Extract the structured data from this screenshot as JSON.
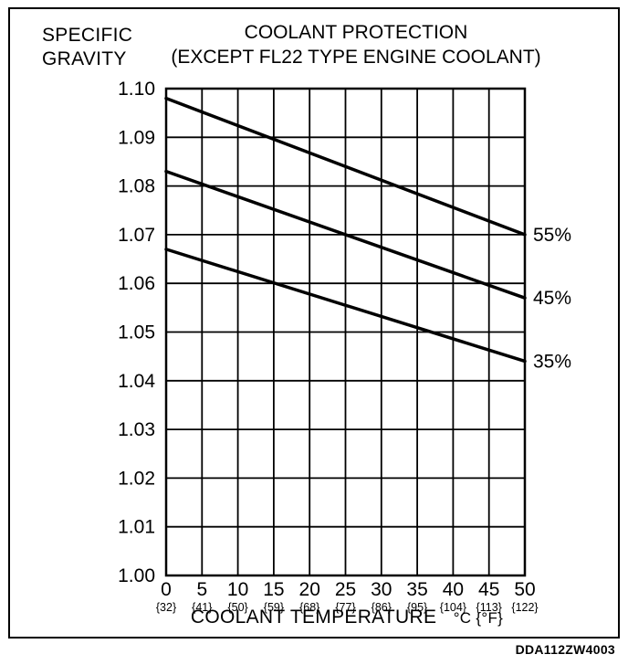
{
  "footer": {
    "figure_code": "DDA112ZW4003"
  },
  "chart_data": {
    "type": "line",
    "title": "COOLANT PROTECTION (EXCEPT FL22 TYPE ENGINE COOLANT)",
    "title_line1": "COOLANT PROTECTION",
    "title_line2": "(EXCEPT FL22 TYPE ENGINE COOLANT)",
    "ylabel": "SPECIFIC GRAVITY",
    "ylabel_line1": "SPECIFIC",
    "ylabel_line2": "GRAVITY",
    "xlabel": "COOLANT TEMPERATURE",
    "xlabel_unit": "°C {°F}",
    "xlim": [
      0,
      50
    ],
    "ylim": [
      1.0,
      1.1
    ],
    "grid": true,
    "x_ticks_c": [
      0,
      5,
      10,
      15,
      20,
      25,
      30,
      35,
      40,
      45,
      50
    ],
    "x_ticks_f": [
      "{32}",
      "{41}",
      "{50}",
      "{59}",
      "{68}",
      "{77}",
      "{86}",
      "{95}",
      "{104}",
      "{113}",
      "{122}"
    ],
    "y_ticks": [
      1.0,
      1.01,
      1.02,
      1.03,
      1.04,
      1.05,
      1.06,
      1.07,
      1.08,
      1.09,
      1.1
    ],
    "legend_position": "right-of-lines",
    "series": [
      {
        "name": "55%",
        "x": [
          0,
          50
        ],
        "y": [
          1.098,
          1.07
        ]
      },
      {
        "name": "45%",
        "x": [
          0,
          50
        ],
        "y": [
          1.083,
          1.057
        ]
      },
      {
        "name": "35%",
        "x": [
          0,
          50
        ],
        "y": [
          1.067,
          1.044
        ]
      }
    ]
  }
}
